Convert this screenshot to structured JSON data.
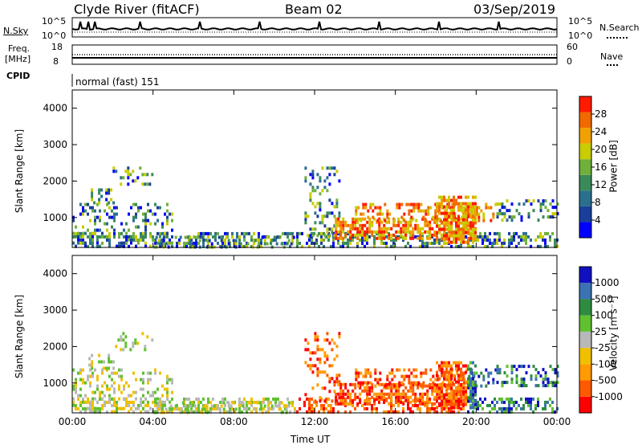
{
  "header": {
    "station": "Clyde River (fitACF)",
    "beam": "Beam 02",
    "date": "03/Sep/2019"
  },
  "noise_panel": {
    "left_label": "N.Sky",
    "right_label": "N.Search",
    "left_ticks": [
      "10^5",
      "10^0"
    ],
    "right_ticks": [
      "10^5",
      "10^0"
    ]
  },
  "freq_panel": {
    "left_label_1": "Freq.",
    "left_label_2": "[MHz]",
    "right_label": "Nave",
    "left_ticks": [
      "18",
      "8"
    ],
    "right_ticks": [
      "60",
      "0"
    ]
  },
  "cpid": {
    "label": "CPID",
    "value": "normal (fast) 151"
  },
  "colors": {
    "power_scale": [
      "#0000ff",
      "#1a3f99",
      "#2b6f8f",
      "#3a8a5a",
      "#6fb03a",
      "#c8cc00",
      "#f0a000",
      "#f06a00",
      "#ff1a00"
    ],
    "velocity_scale": [
      "#ff0000",
      "#ff5a00",
      "#ff9a00",
      "#f0c000",
      "#b8b8b8",
      "#60c030",
      "#2e8b40",
      "#3b72b0",
      "#1010c0"
    ]
  },
  "chart_data": [
    {
      "type": "heatmap",
      "name": "power",
      "ylabel": "Slant Range [km]",
      "xlabel": "",
      "ylim": [
        180,
        4500
      ],
      "y_ticks": [
        "1000",
        "2000",
        "3000",
        "4000"
      ],
      "x_ticks": [],
      "colorbar_label": "Power [dB]",
      "colorbar_ticks": [
        "4",
        "8",
        "12",
        "16",
        "20",
        "24",
        "28"
      ],
      "colorbar_range": [
        0,
        30
      ]
    },
    {
      "type": "heatmap",
      "name": "velocity",
      "ylabel": "Slant Range [km]",
      "xlabel": "Time UT",
      "ylim": [
        180,
        4500
      ],
      "y_ticks": [
        "1000",
        "2000",
        "3000",
        "4000"
      ],
      "x_ticks": [
        "00:00",
        "04:00",
        "08:00",
        "12:00",
        "16:00",
        "20:00",
        "00:00"
      ],
      "colorbar_label": "Velocity [m s⁻¹]",
      "colorbar_ticks": [
        "-1000",
        "-500",
        "-100",
        "-25",
        "25",
        "100",
        "500",
        "1000"
      ]
    }
  ]
}
